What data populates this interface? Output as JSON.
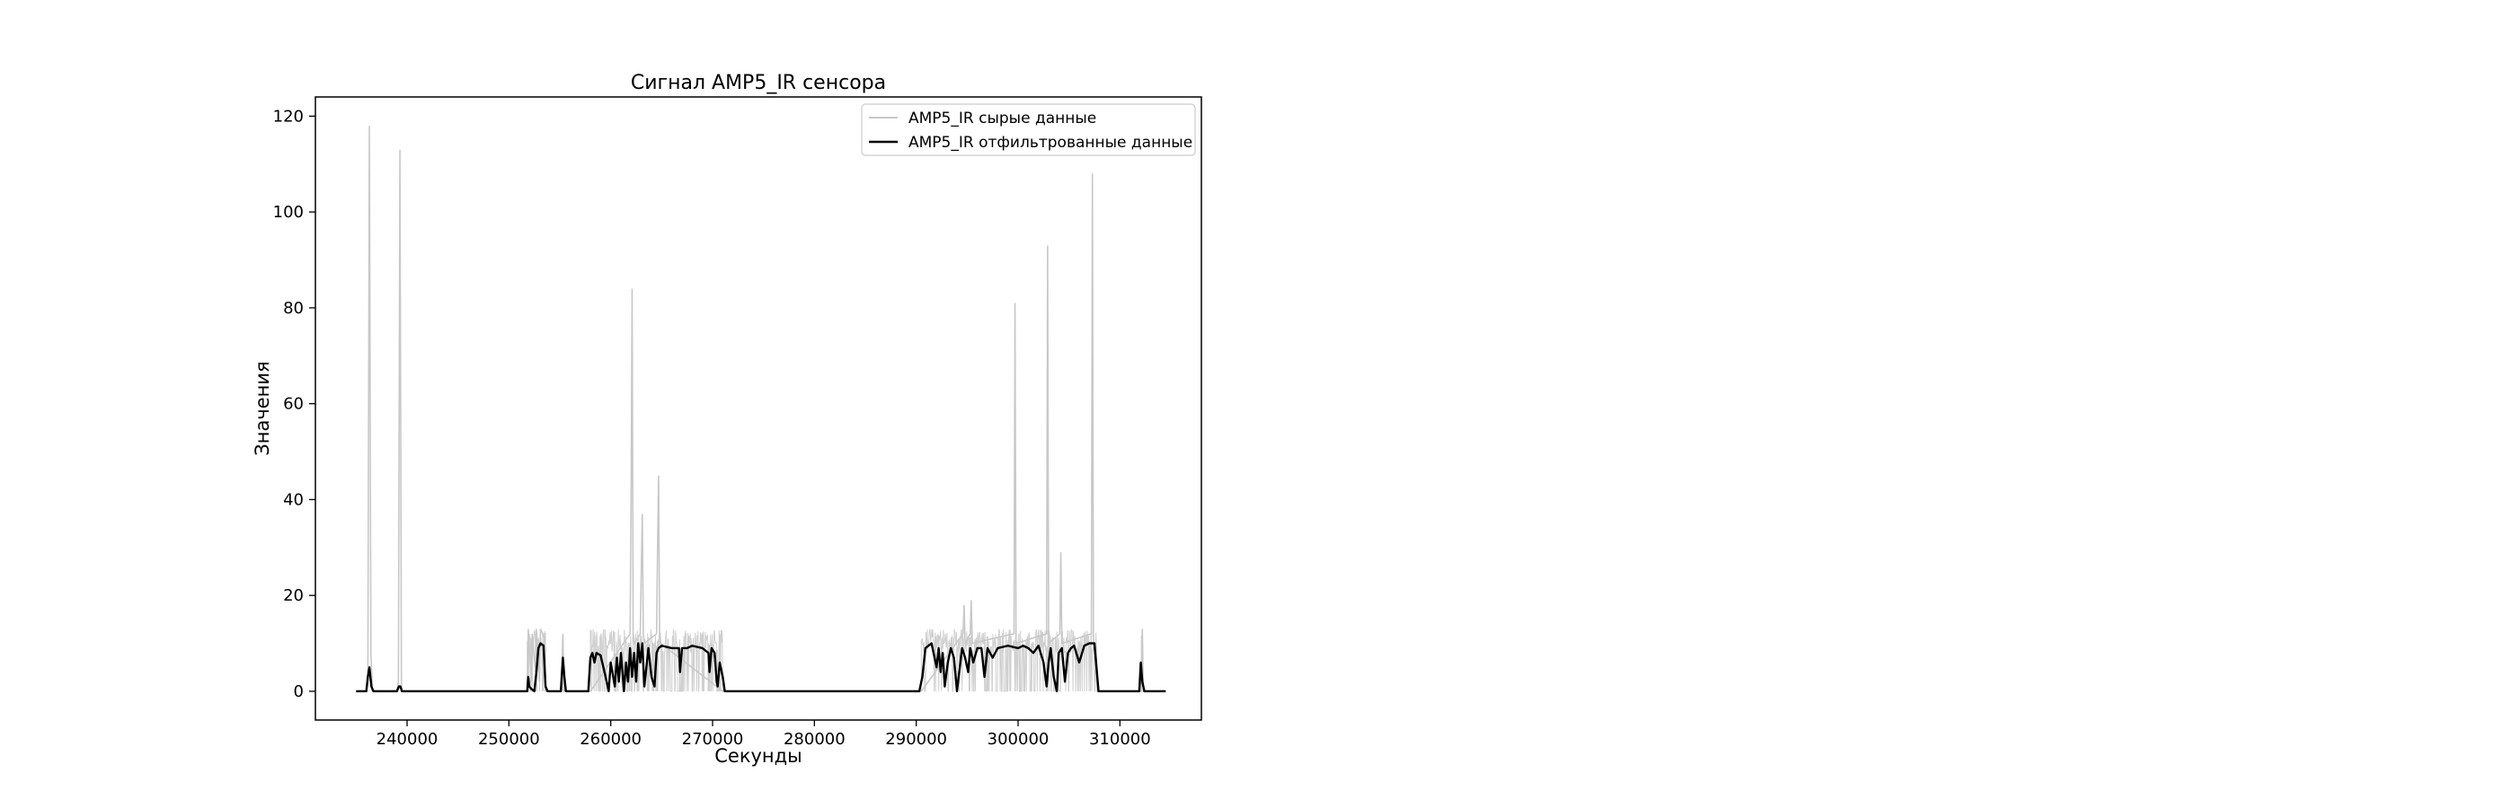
{
  "chart_data": {
    "type": "line",
    "title": "Сигнал AMP5_IR сенсора",
    "xlabel": "Секунды",
    "ylabel": "Значения",
    "xlim": [
      231000,
      318000
    ],
    "ylim": [
      -6,
      124
    ],
    "xticks": [
      240000,
      250000,
      260000,
      270000,
      280000,
      290000,
      300000,
      310000
    ],
    "xtick_labels": [
      "240000",
      "250000",
      "260000",
      "270000",
      "280000",
      "290000",
      "300000",
      "310000"
    ],
    "yticks": [
      0,
      20,
      40,
      60,
      80,
      100,
      120
    ],
    "ytick_labels": [
      "0",
      "20",
      "40",
      "60",
      "80",
      "100",
      "120"
    ],
    "grid": false,
    "legend": {
      "placement": "top-right",
      "entries": [
        "AMP5_IR сырые данные",
        "AMP5_IR отфильтрованные данные"
      ]
    },
    "series": [
      {
        "name": "AMP5_IR сырые данные",
        "color": "#c8c8c8",
        "style": "thin-line",
        "active_segments": [
          [
            251800,
            253600
          ],
          [
            255200,
            255400
          ],
          [
            258000,
            271000
          ],
          [
            290500,
            307800
          ],
          [
            312100,
            312300
          ]
        ],
        "x": [
          235000,
          236000,
          236150,
          236300,
          236450,
          236600,
          239000,
          239150,
          239300,
          239450,
          251800,
          251900,
          252200,
          252300,
          252600,
          252700,
          253000,
          253100,
          253500,
          253600,
          255200,
          255300,
          255400,
          258000,
          261900,
          262000,
          262100,
          262200,
          262300,
          262900,
          263000,
          263100,
          263200,
          263300,
          264500,
          264600,
          264700,
          264800,
          264900,
          271000,
          290500,
          294600,
          294700,
          294800,
          295300,
          295400,
          295500,
          299600,
          299700,
          299800,
          302800,
          302900,
          303000,
          304100,
          304200,
          304300,
          307200,
          307300,
          307400,
          307800,
          312100,
          312200,
          312300,
          314500
        ],
        "y": [
          0,
          0,
          2,
          118,
          8,
          0,
          0,
          2,
          113,
          0,
          0,
          13,
          2,
          12,
          4,
          13,
          2,
          13,
          11,
          0,
          0,
          12,
          0,
          0,
          12,
          40,
          84,
          12,
          10,
          12,
          25,
          37,
          12,
          10,
          12,
          30,
          45,
          12,
          10,
          0,
          0,
          12,
          18,
          10,
          12,
          19,
          10,
          12,
          81,
          10,
          12,
          93,
          10,
          12,
          29,
          10,
          12,
          108,
          10,
          0,
          0,
          13,
          0,
          0
        ]
      },
      {
        "name": "AMP5_IR отфильтрованные данные",
        "color": "#000000",
        "style": "line",
        "x": [
          235000,
          236000,
          236150,
          236300,
          236500,
          236700,
          239000,
          239200,
          239350,
          239500,
          251800,
          251900,
          252000,
          252200,
          252500,
          252700,
          252900,
          253100,
          253400,
          253600,
          253800,
          255100,
          255300,
          255450,
          255600,
          257800,
          258000,
          258200,
          258400,
          258600,
          259000,
          259500,
          259800,
          260000,
          260400,
          260600,
          260800,
          261000,
          261300,
          261500,
          261700,
          261900,
          262100,
          262300,
          262500,
          262700,
          262900,
          263100,
          263300,
          263700,
          264000,
          264300,
          264500,
          264700,
          265000,
          266000,
          266700,
          266800,
          267000,
          267500,
          268000,
          269000,
          269600,
          269700,
          269900,
          270200,
          270400,
          270500,
          270700,
          271000,
          271200,
          290300,
          290600,
          290900,
          291500,
          292000,
          292200,
          292400,
          292600,
          292800,
          293100,
          293400,
          293700,
          294000,
          294500,
          294800,
          295100,
          295300,
          295600,
          296000,
          296400,
          296700,
          297000,
          297500,
          298000,
          299000,
          300000,
          300500,
          301000,
          301500,
          302000,
          302500,
          302800,
          303000,
          303200,
          303500,
          303800,
          304000,
          304300,
          304600,
          304900,
          305200,
          305500,
          306000,
          306500,
          307000,
          307500,
          307700,
          307900,
          311900,
          312050,
          312200,
          312400,
          312600,
          314500
        ],
        "y": [
          0,
          0,
          3,
          5,
          1,
          0,
          0,
          1,
          1,
          0,
          0,
          3,
          1,
          0.5,
          0,
          4,
          9,
          10,
          9.5,
          1,
          0,
          0,
          7,
          3,
          0,
          0,
          7,
          8,
          6,
          8,
          7.5,
          3,
          0,
          6,
          1,
          7,
          2,
          8,
          0,
          6,
          2,
          9,
          3,
          8,
          2,
          10,
          6,
          10,
          1,
          9,
          3,
          1,
          8,
          9,
          9.5,
          9,
          9,
          4,
          9,
          9,
          9.5,
          9,
          8,
          4,
          9,
          8,
          2,
          1,
          6,
          3,
          0,
          0,
          3,
          9,
          10,
          5,
          9,
          4,
          8,
          1,
          6,
          9,
          7,
          0,
          9,
          7,
          4,
          9,
          6,
          9,
          9,
          3,
          9,
          7,
          9,
          9.5,
          9,
          9.5,
          9,
          8,
          9.5,
          6,
          1,
          6,
          9,
          3,
          0,
          8,
          9,
          2,
          8,
          9,
          9.5,
          6,
          9.5,
          10,
          10,
          5,
          0,
          0,
          6,
          2,
          0,
          0,
          0
        ]
      }
    ]
  }
}
